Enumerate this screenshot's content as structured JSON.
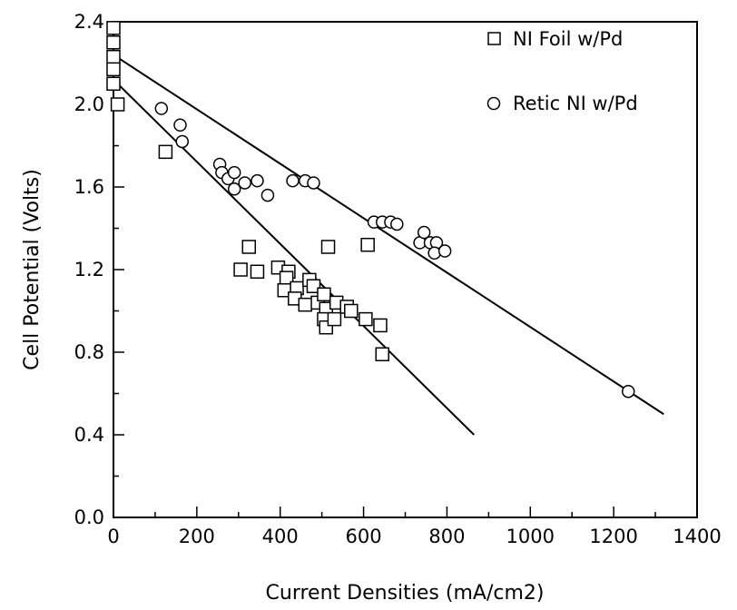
{
  "chart_data": {
    "type": "scatter",
    "title": "",
    "xlabel": "Current Densities (mA/cm2)",
    "ylabel": "Cell Potential (Volts)",
    "xlim": [
      0,
      1400
    ],
    "ylim": [
      0.0,
      2.4
    ],
    "x_ticks": [
      0,
      200,
      400,
      600,
      800,
      1000,
      1200,
      1400
    ],
    "y_ticks": [
      0.0,
      0.4,
      0.8,
      1.2,
      1.6,
      2.0,
      2.4
    ],
    "x_tick_labels": [
      "0",
      "200",
      "400",
      "600",
      "800",
      "1000",
      "1200",
      "1400"
    ],
    "y_tick_labels": [
      "0.0",
      "0.4",
      "0.8",
      "1.2",
      "1.6",
      "2.0",
      "2.4"
    ],
    "grid": false,
    "legend_position": "top-right",
    "series": [
      {
        "name": "NI Foil w/Pd",
        "marker": "square",
        "points": [
          [
            0,
            2.37
          ],
          [
            0,
            2.3
          ],
          [
            0,
            2.23
          ],
          [
            0,
            2.17
          ],
          [
            0,
            2.1
          ],
          [
            10,
            2.0
          ],
          [
            125,
            1.77
          ],
          [
            325,
            1.31
          ],
          [
            305,
            1.2
          ],
          [
            345,
            1.19
          ],
          [
            395,
            1.21
          ],
          [
            420,
            1.19
          ],
          [
            415,
            1.16
          ],
          [
            410,
            1.1
          ],
          [
            440,
            1.11
          ],
          [
            435,
            1.06
          ],
          [
            460,
            1.03
          ],
          [
            470,
            1.15
          ],
          [
            480,
            1.12
          ],
          [
            490,
            1.04
          ],
          [
            505,
            1.08
          ],
          [
            510,
            1.01
          ],
          [
            505,
            0.96
          ],
          [
            510,
            0.92
          ],
          [
            530,
            0.96
          ],
          [
            535,
            1.04
          ],
          [
            515,
            1.31
          ],
          [
            560,
            1.02
          ],
          [
            570,
            1.0
          ],
          [
            605,
            0.96
          ],
          [
            610,
            1.32
          ],
          [
            640,
            0.93
          ],
          [
            645,
            0.79
          ]
        ],
        "fit_line": {
          "x": [
            0,
            865
          ],
          "y": [
            2.12,
            0.4
          ]
        }
      },
      {
        "name": "Retic NI w/Pd",
        "marker": "circle",
        "points": [
          [
            115,
            1.98
          ],
          [
            160,
            1.9
          ],
          [
            165,
            1.82
          ],
          [
            255,
            1.71
          ],
          [
            260,
            1.67
          ],
          [
            275,
            1.64
          ],
          [
            290,
            1.67
          ],
          [
            290,
            1.59
          ],
          [
            315,
            1.62
          ],
          [
            345,
            1.63
          ],
          [
            370,
            1.56
          ],
          [
            430,
            1.63
          ],
          [
            460,
            1.63
          ],
          [
            480,
            1.62
          ],
          [
            625,
            1.43
          ],
          [
            645,
            1.43
          ],
          [
            665,
            1.43
          ],
          [
            680,
            1.42
          ],
          [
            735,
            1.33
          ],
          [
            745,
            1.38
          ],
          [
            760,
            1.33
          ],
          [
            775,
            1.33
          ],
          [
            770,
            1.28
          ],
          [
            795,
            1.29
          ],
          [
            1235,
            0.61
          ]
        ],
        "fit_line": {
          "x": [
            0,
            1320
          ],
          "y": [
            2.24,
            0.5
          ]
        }
      }
    ]
  }
}
